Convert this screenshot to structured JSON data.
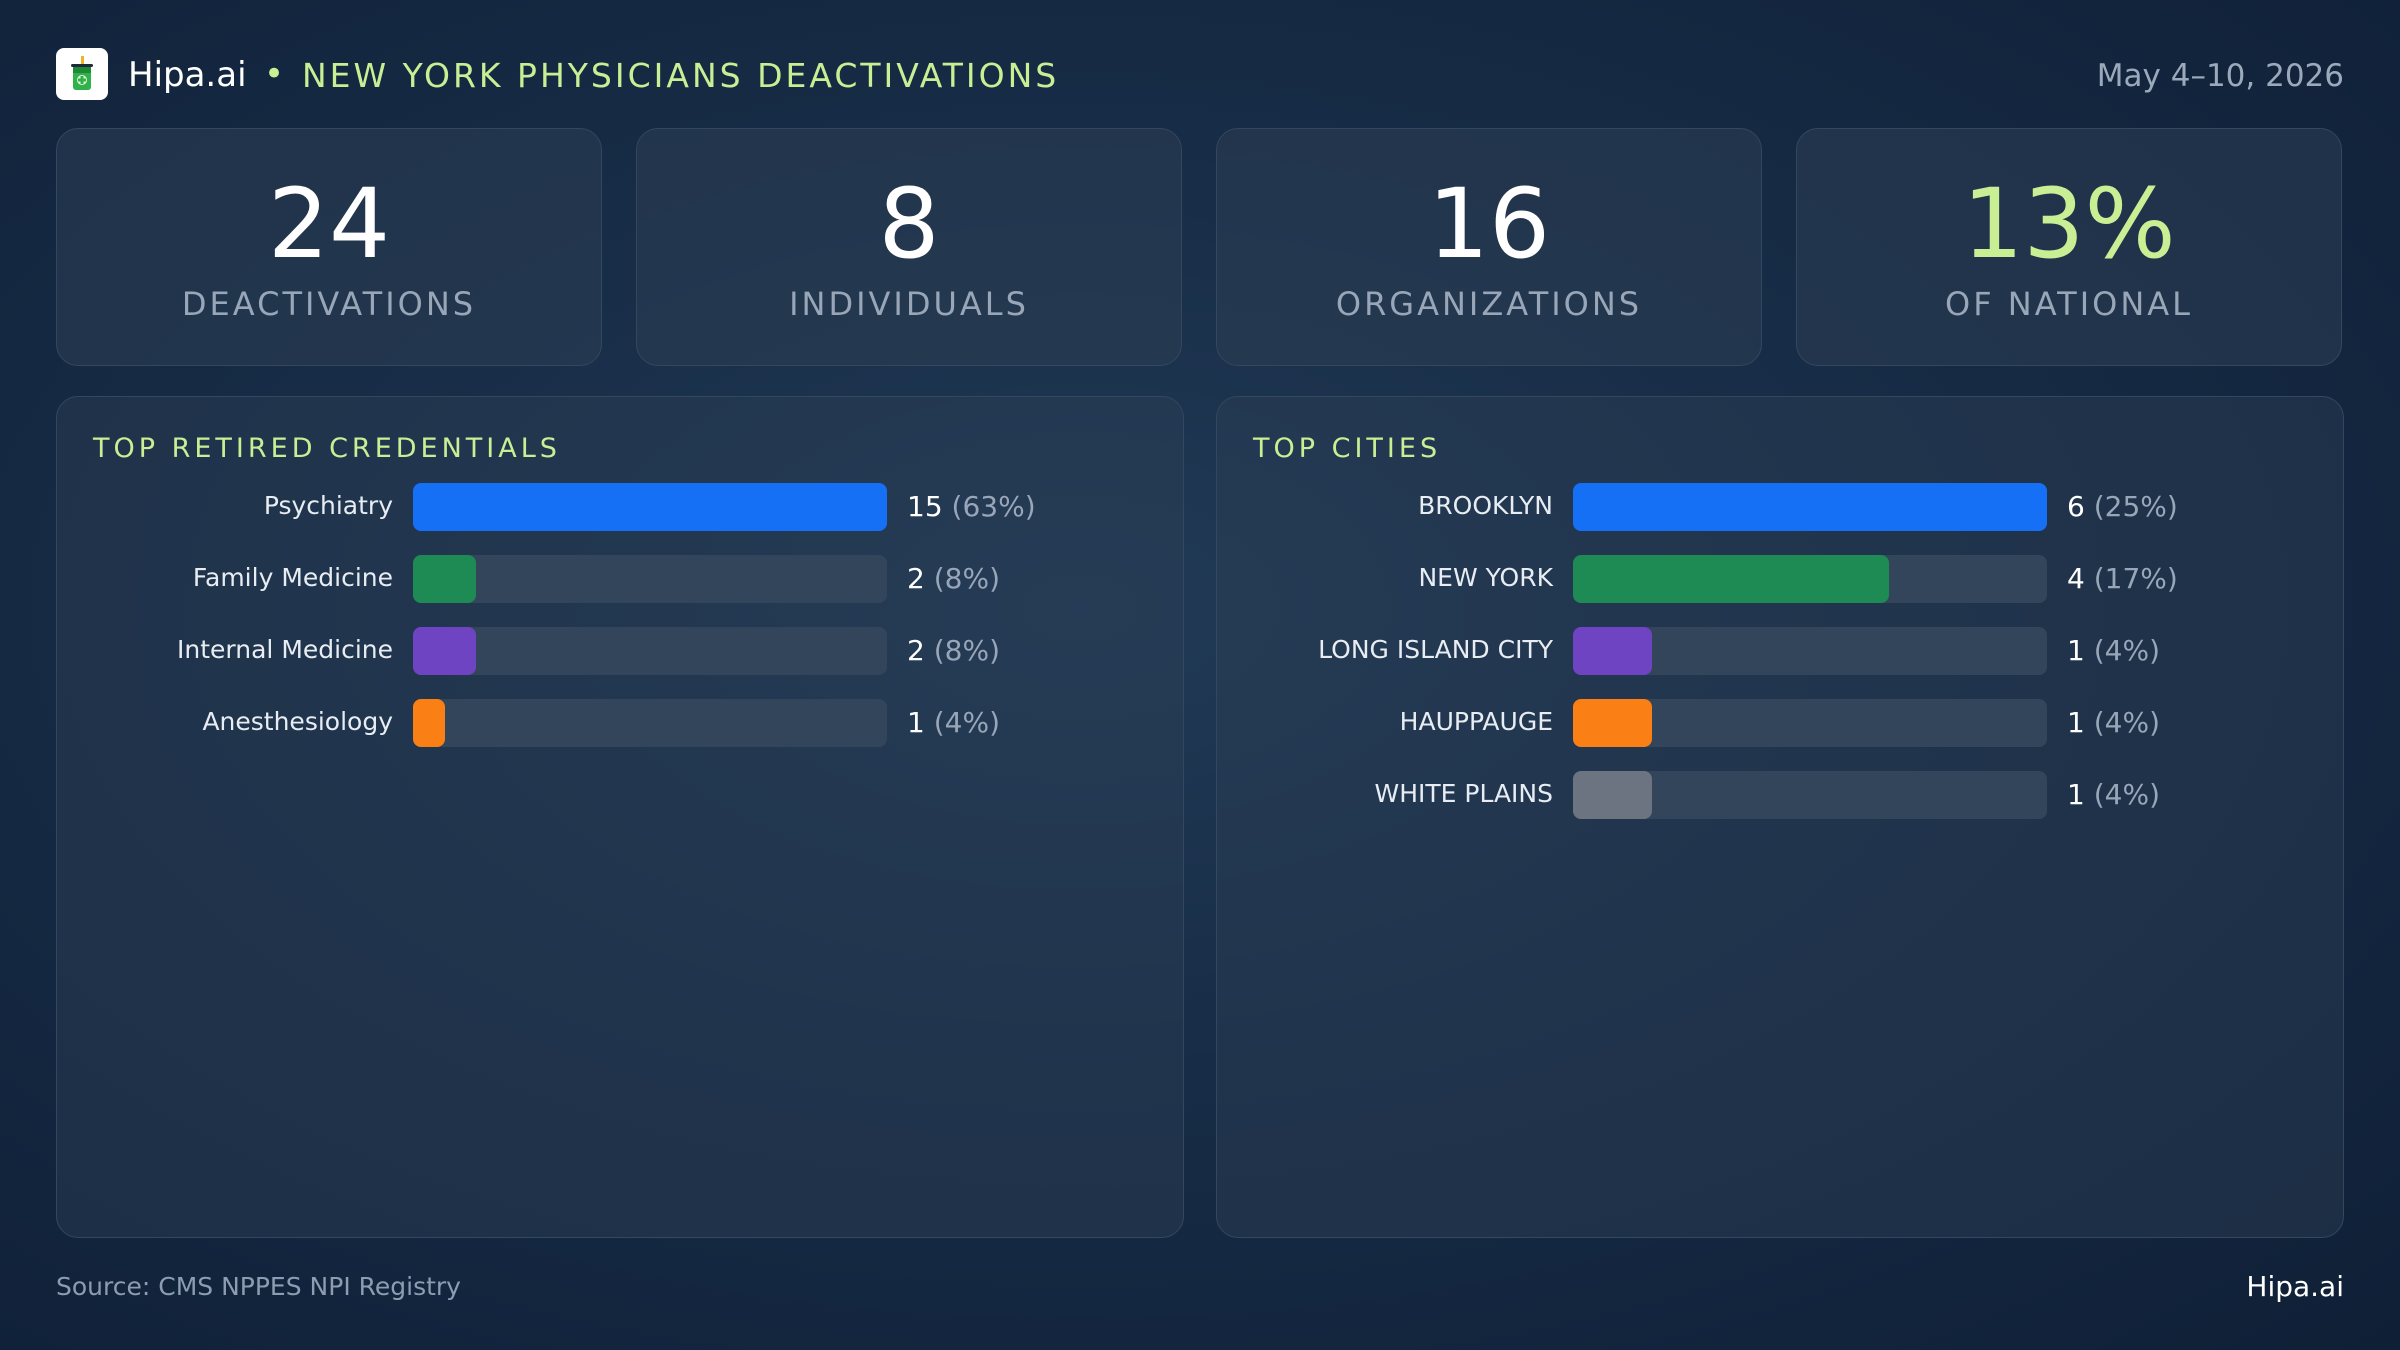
{
  "header": {
    "brand": "Hipa.ai",
    "separator": "•",
    "title": "NEW YORK PHYSICIANS DEACTIVATIONS",
    "date": "May 4–10, 2026"
  },
  "stats": [
    {
      "value": "24",
      "label": "DEACTIVATIONS"
    },
    {
      "value": "8",
      "label": "INDIVIDUALS"
    },
    {
      "value": "16",
      "label": "ORGANIZATIONS"
    },
    {
      "value": "13%",
      "label": "OF NATIONAL"
    }
  ],
  "colors": {
    "accent": "#c9ef94",
    "blue": "#1570f5",
    "green": "#1e8a54",
    "purple": "#6e44c2",
    "orange": "#fa7f14",
    "gray": "#6b7480"
  },
  "chart_data": [
    {
      "type": "bar",
      "orientation": "horizontal",
      "title": "TOP RETIRED CREDENTIALS",
      "categories": [
        "Psychiatry",
        "Family Medicine",
        "Internal Medicine",
        "Anesthesiology"
      ],
      "values": [
        15,
        2,
        2,
        1
      ],
      "value_labels": [
        "15",
        "2",
        "2",
        "1"
      ],
      "percent_labels": [
        "(63%)",
        "(8%)",
        "(8%)",
        "(4%)"
      ],
      "bar_colors": [
        "#1570f5",
        "#1e8a54",
        "#6e44c2",
        "#fa7f14"
      ],
      "xlim": [
        0,
        15
      ],
      "grid": false
    },
    {
      "type": "bar",
      "orientation": "horizontal",
      "title": "TOP CITIES",
      "categories": [
        "BROOKLYN",
        "NEW YORK",
        "LONG ISLAND CITY",
        "HAUPPAUGE",
        "WHITE PLAINS"
      ],
      "values": [
        6,
        4,
        1,
        1,
        1
      ],
      "value_labels": [
        "6",
        "4",
        "1",
        "1",
        "1"
      ],
      "percent_labels": [
        "(25%)",
        "(17%)",
        "(4%)",
        "(4%)",
        "(4%)"
      ],
      "bar_colors": [
        "#1570f5",
        "#1e8a54",
        "#6e44c2",
        "#fa7f14",
        "#6b7480"
      ],
      "xlim": [
        0,
        6
      ],
      "grid": false
    }
  ],
  "footer": {
    "source": "Source: CMS NPPES NPI Registry",
    "brand": "Hipa.ai"
  }
}
